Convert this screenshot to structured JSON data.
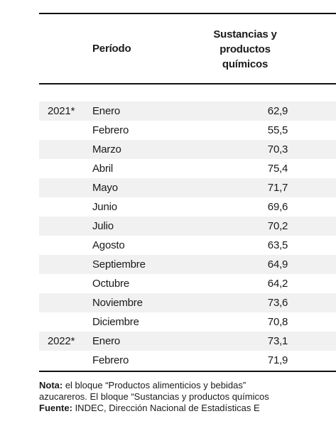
{
  "header": {
    "period": "Período",
    "column_line1": "Sustancias y",
    "column_line2": "productos",
    "column_line3": "químicos"
  },
  "rows": [
    {
      "year": "2021*",
      "month": "Enero",
      "value": "62,9"
    },
    {
      "year": "",
      "month": "Febrero",
      "value": "55,5"
    },
    {
      "year": "",
      "month": "Marzo",
      "value": "70,3"
    },
    {
      "year": "",
      "month": "Abril",
      "value": "75,4"
    },
    {
      "year": "",
      "month": "Mayo",
      "value": "71,7"
    },
    {
      "year": "",
      "month": "Junio",
      "value": "69,6"
    },
    {
      "year": "",
      "month": "Julio",
      "value": "70,2"
    },
    {
      "year": "",
      "month": "Agosto",
      "value": "63,5"
    },
    {
      "year": "",
      "month": "Septiembre",
      "value": "64,9"
    },
    {
      "year": "",
      "month": "Octubre",
      "value": "64,2"
    },
    {
      "year": "",
      "month": "Noviembre",
      "value": "73,6"
    },
    {
      "year": "",
      "month": "Diciembre",
      "value": "70,8"
    },
    {
      "year": "2022*",
      "month": "Enero",
      "value": "73,1"
    },
    {
      "year": "",
      "month": "Febrero",
      "value": "71,9"
    }
  ],
  "notes": {
    "nota_label": "Nota:",
    "nota_line1": " el bloque “Productos alimenticios y bebidas”",
    "nota_line2": "azucareros. El bloque “Sustancias y productos químicos",
    "fuente_label": "Fuente:",
    "fuente_text": " INDEC, Dirección Nacional de Estadísticas E"
  }
}
